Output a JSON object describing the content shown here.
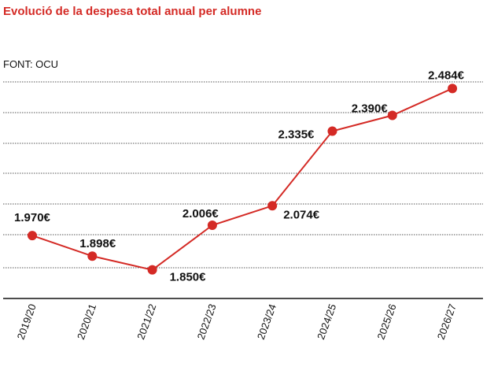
{
  "header": {
    "title": "Evolució de la despesa total anual per alumne",
    "source": "FONT: OCU"
  },
  "chart_data": {
    "type": "line",
    "title": "Evolució de la despesa total anual per alumne",
    "xlabel": "",
    "ylabel": "",
    "categories": [
      "2019/20",
      "2020/21",
      "2021/22",
      "2022/23",
      "2023/24",
      "2024/25",
      "2025/26",
      "2026/27"
    ],
    "values": [
      1970,
      1898,
      1850,
      2006,
      2074,
      2335,
      2390,
      2484
    ],
    "data_labels": [
      "1.970€",
      "1.898€",
      "1.850€",
      "2.006€",
      "2.074€",
      "2.335€",
      "2.390€",
      "2.484€"
    ],
    "ylim": [
      1750,
      2540
    ],
    "grid": true,
    "color": "#d42a25"
  }
}
